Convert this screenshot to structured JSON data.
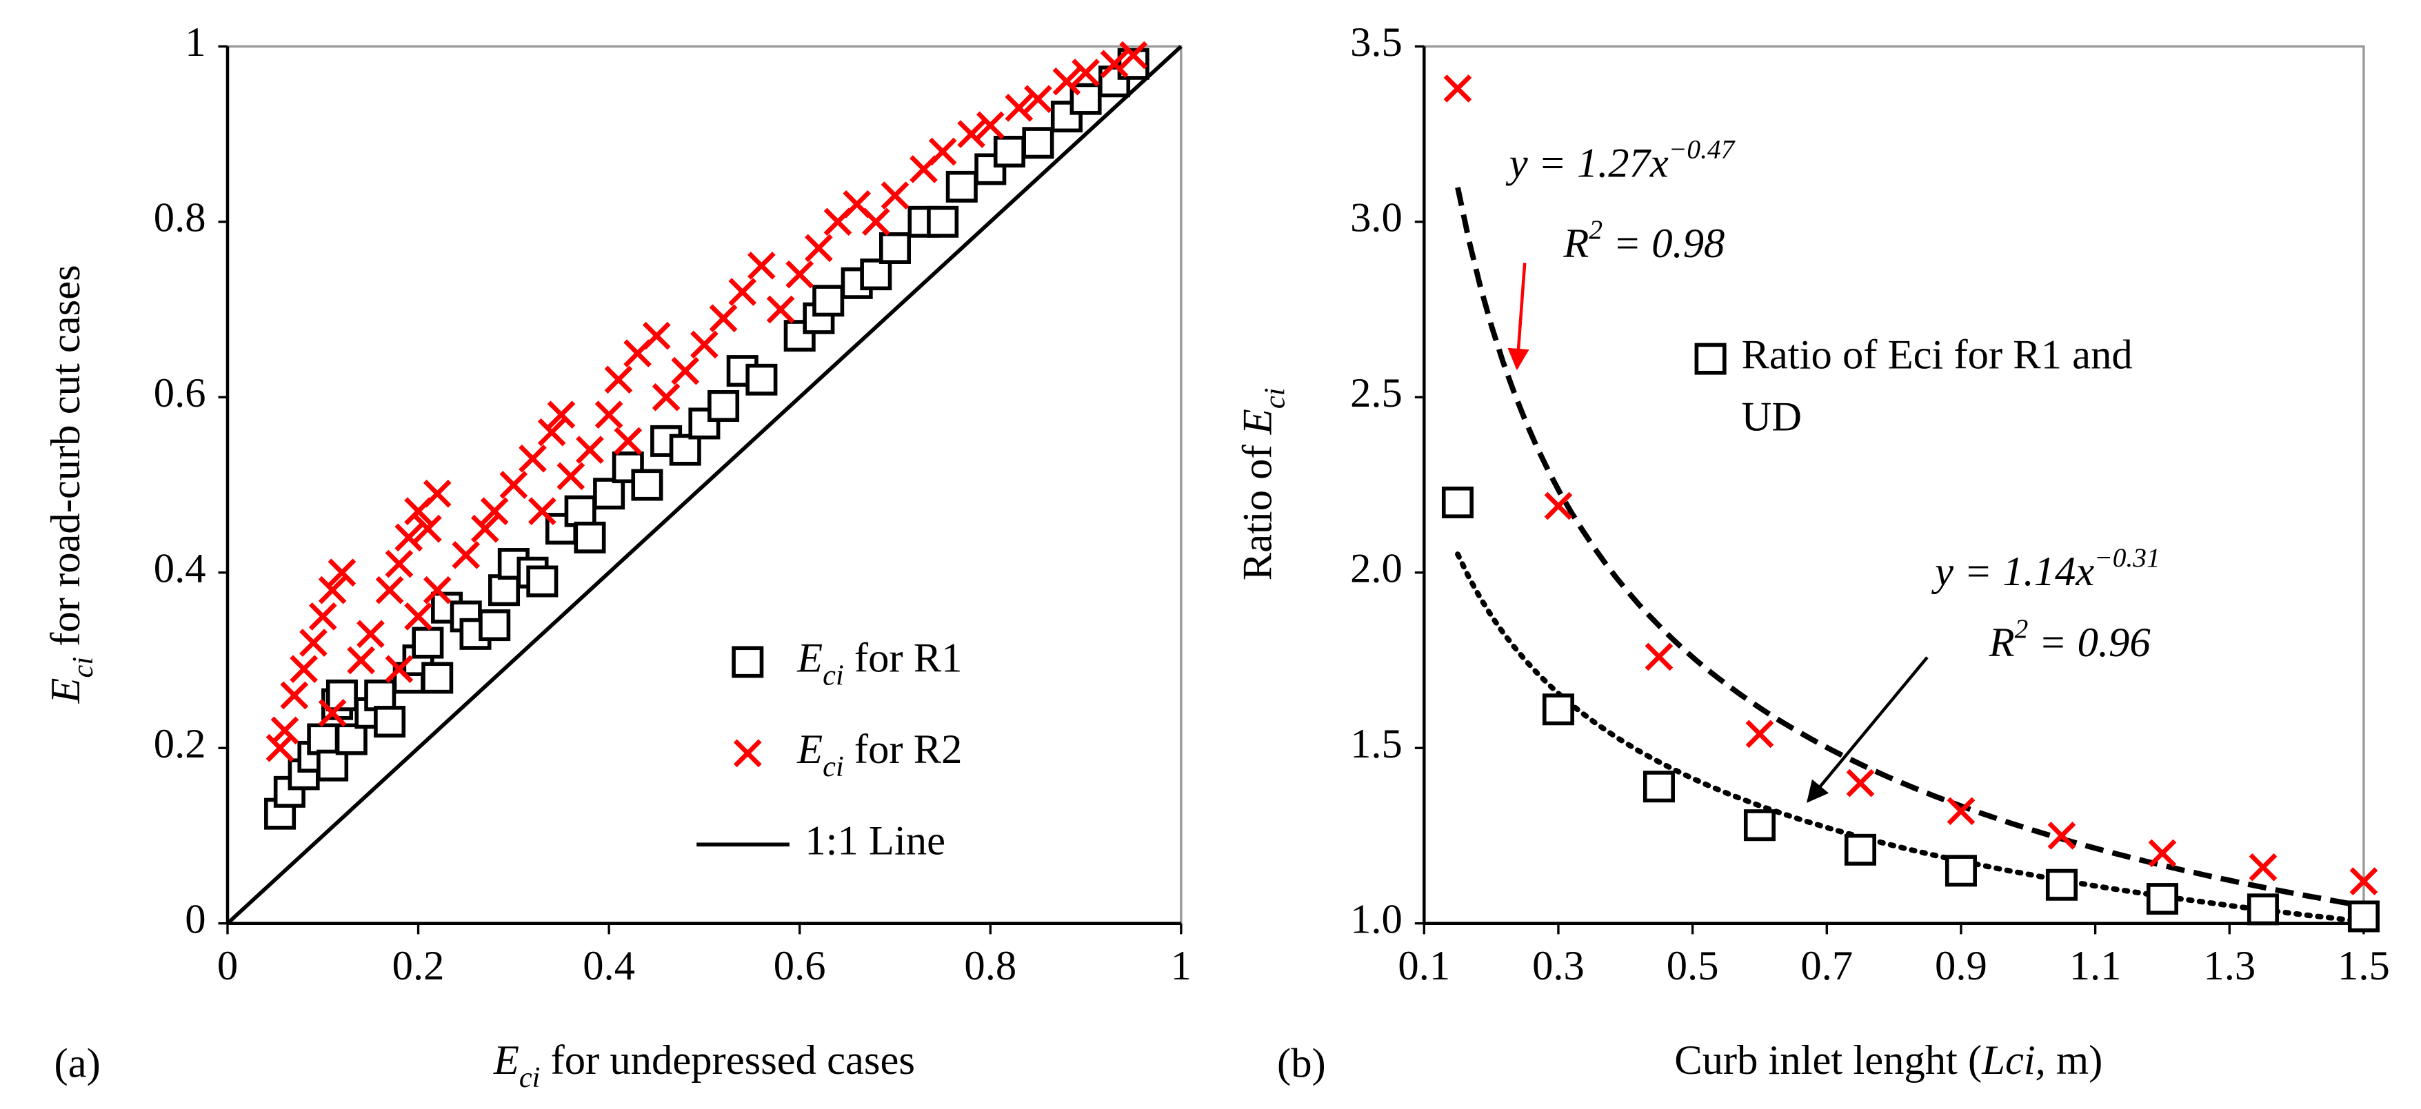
{
  "chart_data": [
    {
      "type": "scatter",
      "panel_label": "(a)",
      "x_label": [
        {
          "text": "E",
          "style": "italic"
        },
        {
          "text": "ci",
          "style": "sub"
        },
        {
          "text": " for undepressed cases"
        }
      ],
      "y_label": [
        {
          "text": "E",
          "style": "italic"
        },
        {
          "text": "ci",
          "style": "sub"
        },
        {
          "text": " for road-curb cut cases"
        }
      ],
      "xlim": [
        0,
        1
      ],
      "ylim": [
        0,
        1
      ],
      "xticks": [
        0,
        0.2,
        0.4,
        0.6,
        0.8,
        1
      ],
      "yticks": [
        0,
        0.2,
        0.4,
        0.6,
        0.8,
        1
      ],
      "grid": false,
      "legend": "lower right",
      "series": [
        {
          "name": [
            {
              "text": "E",
              "style": "italic"
            },
            {
              "text": "ci",
              "style": "sub"
            },
            {
              "text": " for R1"
            }
          ],
          "color": "#000000",
          "marker": "square",
          "x": [
            0.055,
            0.065,
            0.08,
            0.09,
            0.1,
            0.11,
            0.115,
            0.12,
            0.13,
            0.15,
            0.16,
            0.17,
            0.19,
            0.2,
            0.21,
            0.22,
            0.23,
            0.25,
            0.26,
            0.28,
            0.29,
            0.3,
            0.32,
            0.33,
            0.35,
            0.37,
            0.38,
            0.4,
            0.42,
            0.44,
            0.46,
            0.48,
            0.5,
            0.52,
            0.54,
            0.56,
            0.6,
            0.62,
            0.63,
            0.66,
            0.68,
            0.7,
            0.73,
            0.75,
            0.77,
            0.8,
            0.82,
            0.85,
            0.88,
            0.9,
            0.93,
            0.95
          ],
          "values": [
            0.125,
            0.15,
            0.17,
            0.19,
            0.21,
            0.18,
            0.25,
            0.26,
            0.21,
            0.24,
            0.26,
            0.23,
            0.28,
            0.3,
            0.32,
            0.28,
            0.36,
            0.35,
            0.33,
            0.34,
            0.38,
            0.41,
            0.4,
            0.39,
            0.45,
            0.47,
            0.44,
            0.49,
            0.52,
            0.5,
            0.55,
            0.54,
            0.57,
            0.59,
            0.63,
            0.62,
            0.67,
            0.69,
            0.71,
            0.73,
            0.74,
            0.77,
            0.8,
            0.8,
            0.84,
            0.86,
            0.88,
            0.89,
            0.92,
            0.94,
            0.96,
            0.98
          ]
        },
        {
          "name": [
            {
              "text": "E",
              "style": "italic"
            },
            {
              "text": "ci",
              "style": "sub"
            },
            {
              "text": " for R2"
            }
          ],
          "color": "#ff0000",
          "marker": "x",
          "x": [
            0.055,
            0.06,
            0.07,
            0.08,
            0.09,
            0.1,
            0.11,
            0.12,
            0.11,
            0.14,
            0.15,
            0.17,
            0.18,
            0.19,
            0.2,
            0.21,
            0.22,
            0.18,
            0.2,
            0.22,
            0.25,
            0.27,
            0.28,
            0.3,
            0.32,
            0.34,
            0.35,
            0.33,
            0.36,
            0.38,
            0.4,
            0.41,
            0.43,
            0.45,
            0.42,
            0.46,
            0.48,
            0.5,
            0.52,
            0.54,
            0.56,
            0.58,
            0.6,
            0.62,
            0.64,
            0.66,
            0.68,
            0.7,
            0.73,
            0.75,
            0.78,
            0.8,
            0.83,
            0.85,
            0.88,
            0.9,
            0.93,
            0.95
          ],
          "values": [
            0.2,
            0.22,
            0.26,
            0.29,
            0.32,
            0.35,
            0.38,
            0.4,
            0.24,
            0.3,
            0.33,
            0.38,
            0.41,
            0.44,
            0.47,
            0.45,
            0.49,
            0.29,
            0.35,
            0.38,
            0.42,
            0.45,
            0.47,
            0.5,
            0.53,
            0.56,
            0.58,
            0.47,
            0.51,
            0.54,
            0.58,
            0.62,
            0.65,
            0.67,
            0.55,
            0.6,
            0.63,
            0.66,
            0.69,
            0.72,
            0.75,
            0.7,
            0.74,
            0.77,
            0.8,
            0.82,
            0.8,
            0.83,
            0.86,
            0.88,
            0.9,
            0.91,
            0.93,
            0.94,
            0.96,
            0.97,
            0.98,
            0.99
          ]
        },
        {
          "name": [
            {
              "text": "1:1 Line"
            }
          ],
          "color": "#000000",
          "marker": "line",
          "x": [
            0,
            1
          ],
          "values": [
            0,
            1
          ]
        }
      ]
    },
    {
      "type": "scatter",
      "panel_label": "(b)",
      "x_label": [
        {
          "text": "Curb inlet lenght ("
        },
        {
          "text": "Lci,",
          "style": "italic"
        },
        {
          "text": " m)"
        }
      ],
      "y_label": [
        {
          "text": "Ratio of "
        },
        {
          "text": "E",
          "style": "italic"
        },
        {
          "text": "ci",
          "style": "sub"
        }
      ],
      "xlim": [
        0.1,
        1.5
      ],
      "ylim": [
        1,
        3.5
      ],
      "xticks": [
        0.1,
        0.3,
        0.5,
        0.7,
        0.9,
        1.1,
        1.3,
        1.5
      ],
      "yticks": [
        {
          "value": 1,
          "label": "1.0"
        },
        1.5,
        {
          "value": 2,
          "label": "2.0"
        },
        2.5,
        {
          "value": 3,
          "label": "3.0"
        },
        3.5
      ],
      "grid": false,
      "legend": "upper right",
      "x": [
        0.15,
        0.3,
        0.45,
        0.6,
        0.75,
        0.9,
        1.05,
        1.2,
        1.35,
        1.5
      ],
      "series": [
        {
          "name": [
            {
              "text": "Ratio of Eci for R1 and"
            },
            {
              "text": "UD"
            }
          ],
          "color": "#000000",
          "marker": "square",
          "values": [
            2.2,
            1.61,
            1.39,
            1.28,
            1.21,
            1.15,
            1.11,
            1.07,
            1.04,
            1.02
          ]
        },
        {
          "color": "#ff0000",
          "marker": "x",
          "values": [
            3.38,
            2.19,
            1.76,
            1.54,
            1.4,
            1.32,
            1.25,
            1.2,
            1.16,
            1.12
          ]
        }
      ],
      "trendlines": [
        {
          "a": 1.27,
          "b": -0.47,
          "color": "#000000",
          "dash": "dashed",
          "text_color": "#ff0000",
          "equation": [
            {
              "text": "y = 1.27x"
            },
            {
              "text": "−0.47",
              "style": "sup"
            }
          ],
          "r2": [
            {
              "text": "R"
            },
            {
              "text": "2",
              "style": "sup"
            },
            {
              "text": " = 0.98"
            }
          ]
        },
        {
          "a": 1.14,
          "b": -0.31,
          "color": "#000000",
          "dash": "dotted",
          "text_color": "#000000",
          "equation": [
            {
              "text": "y = 1.14x"
            },
            {
              "text": "−0.31",
              "style": "sup"
            }
          ],
          "r2": [
            {
              "text": "R"
            },
            {
              "text": "2",
              "style": "sup"
            },
            {
              "text": " = 0.96"
            }
          ]
        }
      ]
    }
  ]
}
